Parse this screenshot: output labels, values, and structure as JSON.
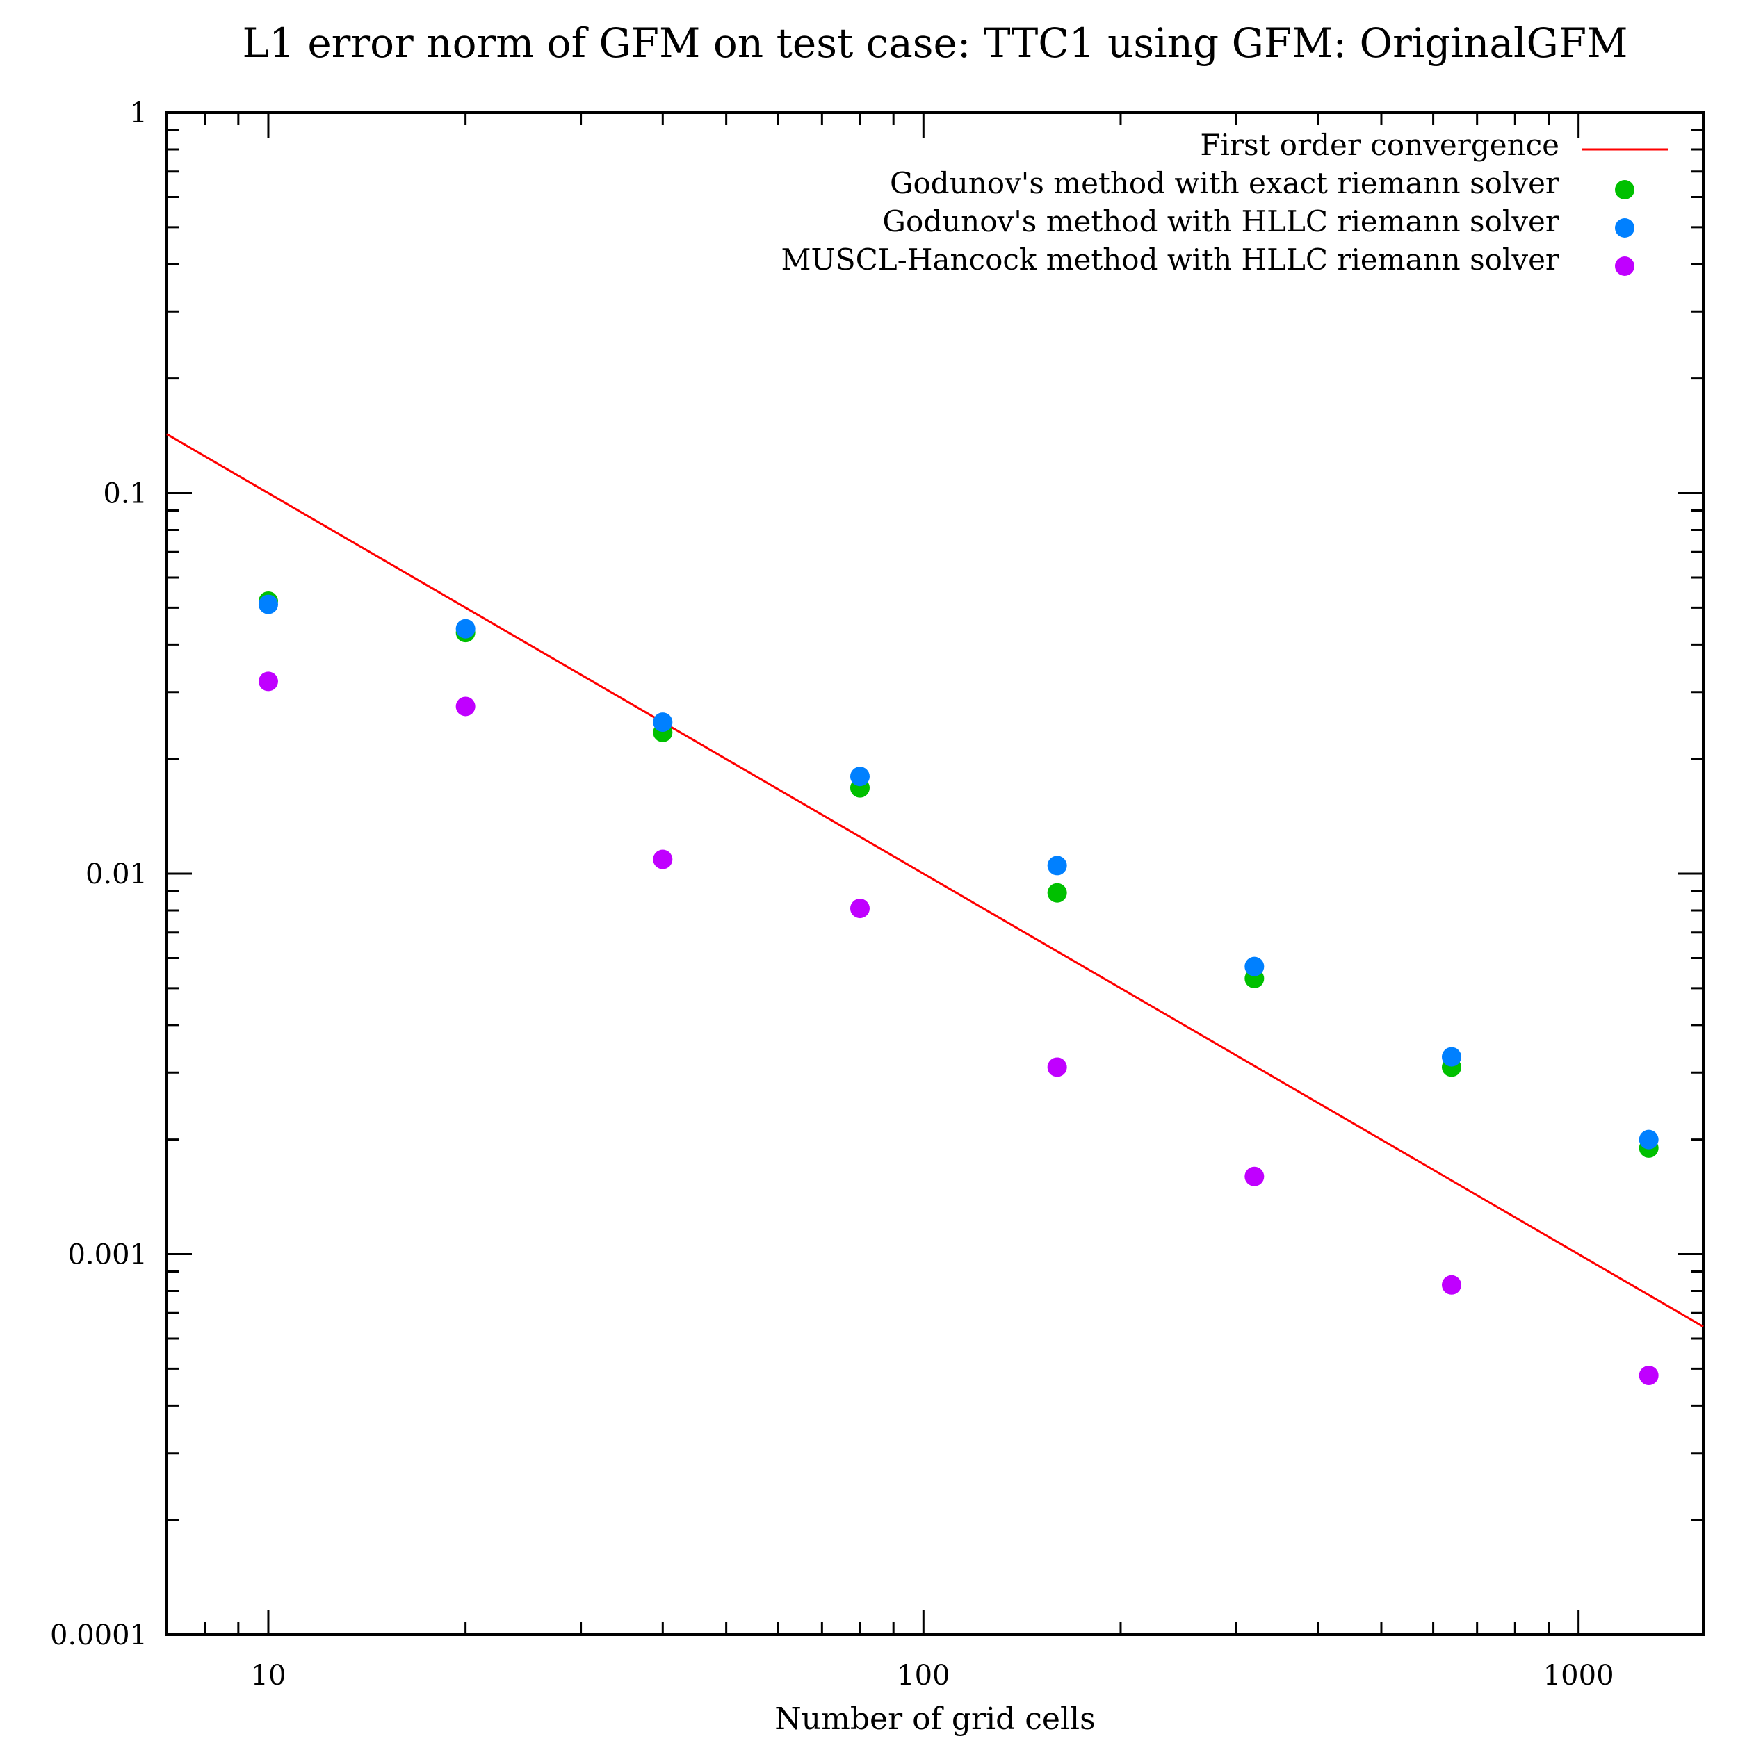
{
  "chart_data": {
    "type": "scatter",
    "title": "L1 error norm of GFM on test case: TTC1 using GFM: OriginalGFM",
    "xlabel": "Number of grid cells",
    "ylabel": "",
    "xscale": "log",
    "yscale": "log",
    "xlim": [
      7,
      1550
    ],
    "ylim": [
      0.0001,
      1
    ],
    "x_ticks": [
      {
        "value": 10,
        "label": "10"
      },
      {
        "value": 100,
        "label": "100"
      },
      {
        "value": 1000,
        "label": "1000"
      }
    ],
    "y_ticks": [
      {
        "value": 1,
        "label": "1"
      },
      {
        "value": 0.1,
        "label": "0.1"
      },
      {
        "value": 0.01,
        "label": "0.01"
      },
      {
        "value": 0.001,
        "label": "0.001"
      },
      {
        "value": 0.0001,
        "label": "0.0001"
      }
    ],
    "grid": false,
    "legend_position": "top-right",
    "series": [
      {
        "name": "First order convergence",
        "kind": "line",
        "color": "#ff0000",
        "x": [
          7,
          1550
        ],
        "y": [
          0.142857,
          0.000645
        ]
      },
      {
        "name": "Godunov's method with exact riemann solver",
        "kind": "points",
        "color": "#00c000",
        "x": [
          10,
          20,
          40,
          80,
          160,
          320,
          640,
          1280
        ],
        "y": [
          0.052,
          0.043,
          0.0235,
          0.0168,
          0.0089,
          0.0053,
          0.0031,
          0.0019
        ]
      },
      {
        "name": "Godunov's method with HLLC riemann solver",
        "kind": "points",
        "color": "#0080ff",
        "x": [
          10,
          20,
          40,
          80,
          160,
          320,
          640,
          1280
        ],
        "y": [
          0.051,
          0.044,
          0.025,
          0.018,
          0.0105,
          0.0057,
          0.0033,
          0.002
        ]
      },
      {
        "name": "MUSCL-Hancock method with HLLC riemann solver",
        "kind": "points",
        "color": "#c000ff",
        "x": [
          10,
          20,
          40,
          80,
          160,
          320,
          640,
          1280
        ],
        "y": [
          0.032,
          0.0275,
          0.0109,
          0.0081,
          0.0031,
          0.0016,
          0.00083,
          0.00048
        ]
      }
    ]
  }
}
